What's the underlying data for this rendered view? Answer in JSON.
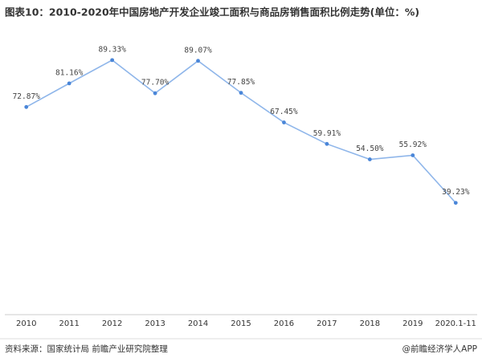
{
  "chart_data": {
    "type": "line",
    "title": "图表10：2010-2020年中国房地产开发企业竣工面积与商品房销售面积比例走势(单位：%)",
    "categories": [
      "2010",
      "2011",
      "2012",
      "2013",
      "2014",
      "2015",
      "2016",
      "2017",
      "2018",
      "2019",
      "2020.1-11"
    ],
    "series": [
      {
        "name": "竣工面积与商品房销售面积比例",
        "color": "#8fb6ea",
        "values": [
          72.87,
          81.16,
          89.33,
          77.7,
          89.07,
          77.85,
          67.45,
          59.91,
          54.5,
          55.92,
          39.23
        ],
        "value_labels": [
          "72.87%",
          "81.16%",
          "89.33%",
          "77.70%",
          "89.07%",
          "77.85%",
          "67.45%",
          "59.91%",
          "54.50%",
          "55.92%",
          "39.23%"
        ]
      }
    ],
    "ylim": [
      0,
      100
    ],
    "source": "资料来源：国家统计局 前瞻产业研究院整理",
    "credit": "@前瞻经济学人APP"
  }
}
